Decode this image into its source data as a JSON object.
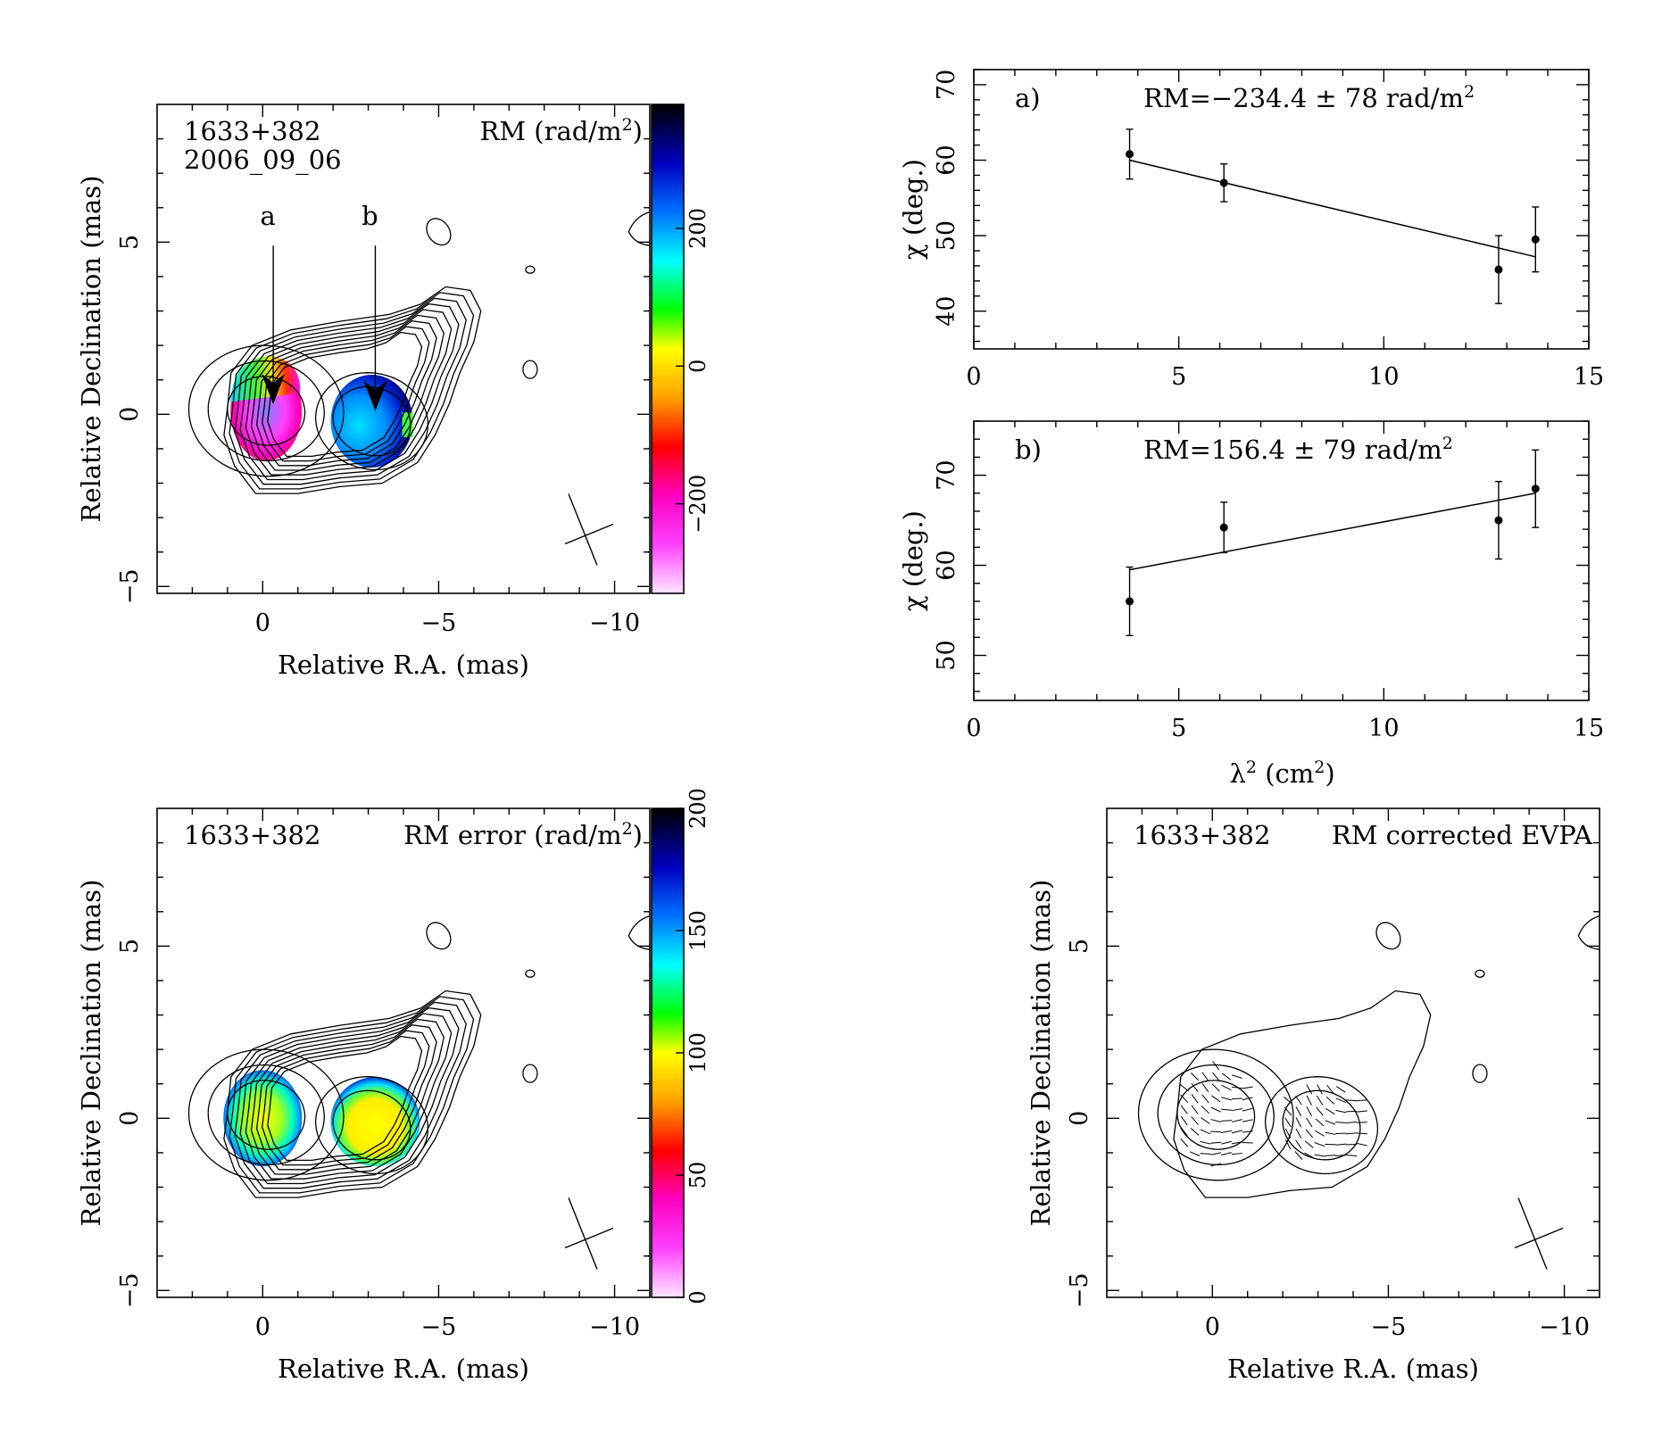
{
  "chart_data": [
    {
      "type": "heatmap",
      "panel": "rm-map",
      "source": "1633+382",
      "epoch": "2006_09_06",
      "quantity_label": "RM (rad/m",
      "quantity_sup": "2",
      "quantity_close": ")",
      "xlabel": "Relative R.A. (mas)",
      "ylabel": "Relative Declination (mas)",
      "xlim": [
        3,
        -11
      ],
      "ylim": [
        -5.2,
        9
      ],
      "x_ticks": [
        0,
        -5,
        -10
      ],
      "x_tick_labels": [
        "0",
        "−5",
        "−10"
      ],
      "y_ticks": [
        -5,
        0,
        5
      ],
      "y_tick_labels": [
        "−5",
        "0",
        "5"
      ],
      "markers": [
        {
          "label": "a",
          "x": -0.3,
          "y": 0.5
        },
        {
          "label": "b",
          "x": -3.2,
          "y": 0.3
        }
      ],
      "colorbar": {
        "min": -330,
        "max": 380,
        "ticks": [
          -200,
          0,
          200
        ],
        "tick_labels": [
          "−200",
          "0",
          "200"
        ]
      },
      "colors": [
        "#ffe6ff",
        "#ff00ff",
        "#ff0000",
        "#ffa000",
        "#ffff00",
        "#00ff00",
        "#00ffff",
        "#0070ff",
        "#0000c0",
        "#000000"
      ]
    },
    {
      "type": "scatter",
      "panel": "fit-a",
      "label": "a)",
      "rm_text": "RM=−234.4 ± 78 rad/m",
      "rm_sup": "2",
      "ylabel": "χ (deg.)",
      "xlim": [
        0,
        15
      ],
      "ylim": [
        35,
        72
      ],
      "x_ticks": [
        0,
        5,
        10,
        15
      ],
      "y_ticks": [
        40,
        50,
        60,
        70
      ],
      "x": [
        3.8,
        6.1,
        12.8,
        13.7
      ],
      "y": [
        60.8,
        57.0,
        45.5,
        49.5
      ],
      "yerr": [
        3.3,
        2.5,
        4.5,
        4.3
      ],
      "fit": {
        "x": [
          3.8,
          13.7
        ],
        "y": [
          60.0,
          47.2
        ]
      }
    },
    {
      "type": "scatter",
      "panel": "fit-b",
      "label": "b)",
      "rm_text": "RM=156.4 ± 79 rad/m",
      "rm_sup": "2",
      "ylabel": "χ (deg.)",
      "xlabel": "λ",
      "xlabel_sup": "2",
      "xlabel_unit": " (cm",
      "xlabel_unit_sup": "2",
      "xlabel_close": ")",
      "xlim": [
        0,
        15
      ],
      "ylim": [
        45,
        76
      ],
      "x_ticks": [
        0,
        5,
        10,
        15
      ],
      "y_ticks": [
        50,
        60,
        70
      ],
      "x": [
        3.8,
        6.1,
        12.8,
        13.7
      ],
      "y": [
        56.0,
        64.2,
        65.0,
        68.5
      ],
      "yerr": [
        3.8,
        2.8,
        4.3,
        4.3
      ],
      "fit": {
        "x": [
          3.8,
          13.7
        ],
        "y": [
          59.5,
          68.0
        ]
      }
    },
    {
      "type": "heatmap",
      "panel": "rm-error-map",
      "source": "1633+382",
      "quantity_label": "RM error (rad/m",
      "quantity_sup": "2",
      "quantity_close": ")",
      "xlabel": "Relative R.A. (mas)",
      "ylabel": "Relative Declination (mas)",
      "xlim": [
        3,
        -11
      ],
      "ylim": [
        -5.2,
        9
      ],
      "x_ticks": [
        0,
        -5,
        -10
      ],
      "x_tick_labels": [
        "0",
        "−5",
        "−10"
      ],
      "y_ticks": [
        -5,
        0,
        5
      ],
      "y_tick_labels": [
        "−5",
        "0",
        "5"
      ],
      "colorbar": {
        "min": 0,
        "max": 200,
        "ticks": [
          0,
          50,
          100,
          150,
          200
        ],
        "tick_labels": [
          "0",
          "50",
          "100",
          "150",
          "200"
        ]
      },
      "colors": [
        "#ffe6ff",
        "#ff00ff",
        "#ff0000",
        "#ffa000",
        "#ffff00",
        "#00ff00",
        "#00ffff",
        "#0070ff",
        "#0000c0",
        "#000000"
      ]
    },
    {
      "type": "heatmap",
      "panel": "evpa-map",
      "source": "1633+382",
      "quantity_label": "RM corrected EVPA",
      "xlabel": "Relative R.A. (mas)",
      "ylabel": "Relative Declination (mas)",
      "xlim": [
        3,
        -11
      ],
      "ylim": [
        -5.2,
        9
      ],
      "x_ticks": [
        0,
        -5,
        -10
      ],
      "x_tick_labels": [
        "0",
        "−5",
        "−10"
      ],
      "y_ticks": [
        -5,
        0,
        5
      ],
      "y_tick_labels": [
        "−5",
        "0",
        "5"
      ]
    }
  ]
}
